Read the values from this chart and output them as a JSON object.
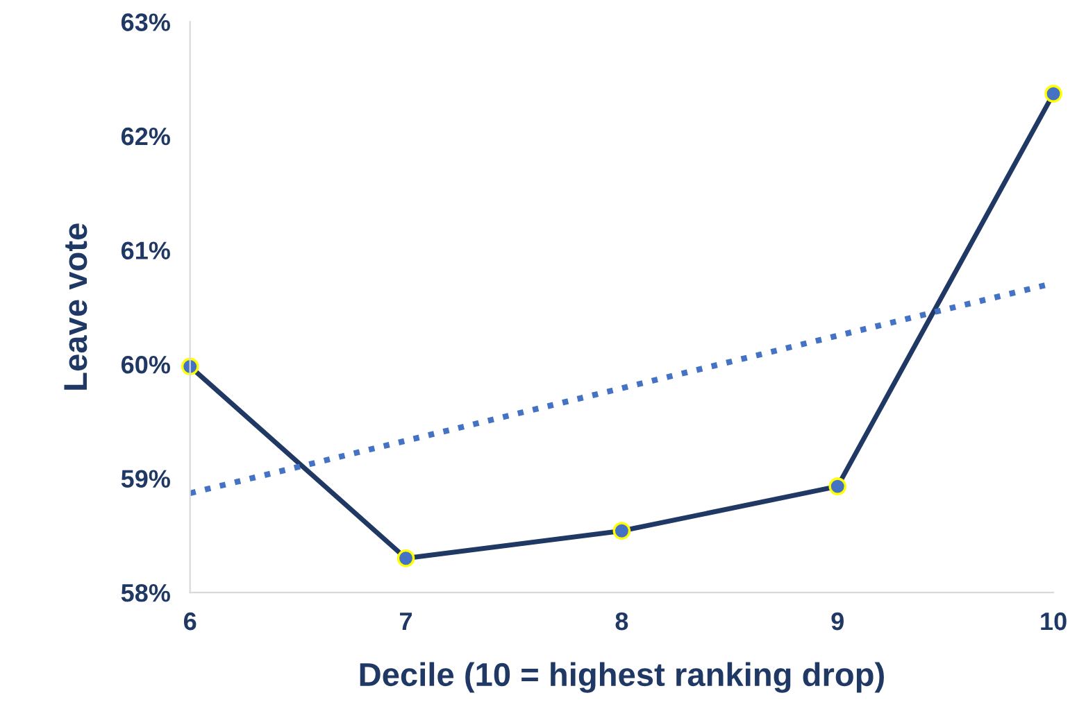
{
  "chart_data": {
    "type": "line",
    "xlabel": "Decile (10 = highest ranking drop)",
    "ylabel": "Leave vote",
    "x": [
      6,
      7,
      8,
      9,
      10
    ],
    "series": [
      {
        "color": "#1f3864",
        "values": [
          59.98,
          58.3,
          58.54,
          58.93,
          62.37
        ],
        "marker": "circle",
        "line_style": "solid"
      },
      {
        "type": "line",
        "color": "#4472c4",
        "x": [
          6,
          10
        ],
        "values": [
          58.87,
          60.71
        ],
        "marker": "none",
        "line_style": "dotted"
      }
    ],
    "xlim": [
      6,
      10
    ],
    "xticks": [
      6,
      7,
      8,
      9,
      10
    ],
    "ylim": [
      58,
      63
    ],
    "yticks": [
      {
        "value": 58,
        "label": "58%"
      },
      {
        "value": 59,
        "label": "59%"
      },
      {
        "value": 60,
        "label": "60%"
      },
      {
        "value": 61,
        "label": "61%"
      },
      {
        "value": 62,
        "label": "62%"
      },
      {
        "value": 63,
        "label": "63%"
      }
    ],
    "grid": false,
    "legend": false
  }
}
